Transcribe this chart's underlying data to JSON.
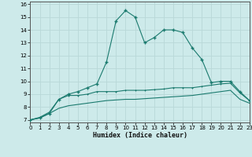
{
  "x": [
    0,
    1,
    2,
    3,
    4,
    5,
    6,
    7,
    8,
    9,
    10,
    11,
    12,
    13,
    14,
    15,
    16,
    17,
    18,
    19,
    20,
    21,
    22,
    23
  ],
  "line1": [
    7.0,
    7.15,
    7.5,
    8.6,
    9.0,
    9.2,
    9.5,
    9.8,
    11.5,
    14.7,
    15.5,
    15.0,
    13.0,
    13.4,
    14.0,
    14.0,
    13.8,
    12.6,
    11.7,
    9.9,
    10.0,
    10.0,
    9.2,
    8.5
  ],
  "line2": [
    7.0,
    7.2,
    7.6,
    8.6,
    8.9,
    8.9,
    9.0,
    9.2,
    9.2,
    9.2,
    9.3,
    9.3,
    9.3,
    9.35,
    9.4,
    9.5,
    9.5,
    9.5,
    9.6,
    9.7,
    9.8,
    9.85,
    9.1,
    8.5
  ],
  "line3": [
    7.0,
    7.15,
    7.5,
    7.9,
    8.1,
    8.2,
    8.3,
    8.4,
    8.5,
    8.55,
    8.6,
    8.6,
    8.65,
    8.7,
    8.75,
    8.8,
    8.85,
    8.9,
    9.0,
    9.1,
    9.2,
    9.3,
    8.6,
    8.3
  ],
  "line_color": "#1a7a6e",
  "bg_color": "#cdeaea",
  "grid_color": "#b8d8d8",
  "xlabel": "Humidex (Indice chaleur)",
  "xlim": [
    0,
    23
  ],
  "ylim": [
    6.8,
    16.2
  ],
  "xticks": [
    0,
    1,
    2,
    3,
    4,
    5,
    6,
    7,
    8,
    9,
    10,
    11,
    12,
    13,
    14,
    15,
    16,
    17,
    18,
    19,
    20,
    21,
    22,
    23
  ],
  "yticks": [
    7,
    8,
    9,
    10,
    11,
    12,
    13,
    14,
    15,
    16
  ]
}
